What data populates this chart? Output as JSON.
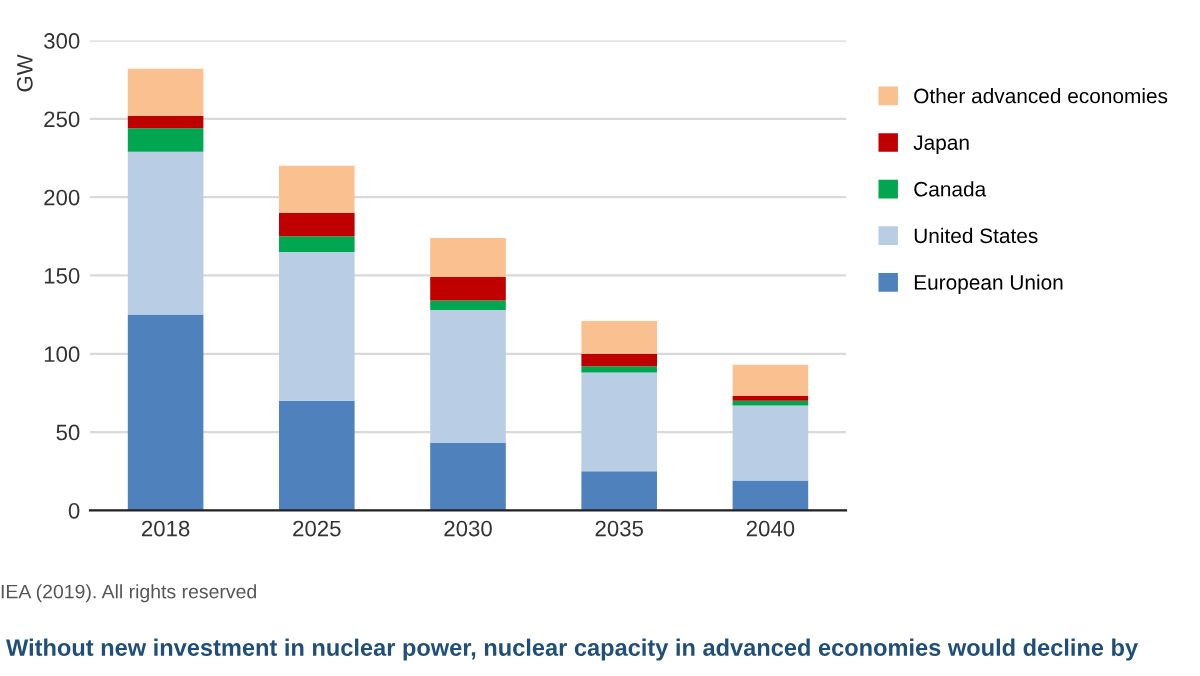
{
  "chart_data": {
    "type": "bar",
    "stacked": true,
    "ylabel": "GW",
    "categories": [
      "2018",
      "2025",
      "2030",
      "2035",
      "2040"
    ],
    "series": [
      {
        "name": "European Union",
        "color": "#4f81bd",
        "values": [
          125,
          70,
          43,
          25,
          19
        ]
      },
      {
        "name": "United States",
        "color": "#b9cde5",
        "values": [
          104,
          95,
          85,
          63,
          48
        ]
      },
      {
        "name": "Canada",
        "color": "#00a650",
        "values": [
          15,
          10,
          6,
          4,
          3
        ]
      },
      {
        "name": "Japan",
        "color": "#c00000",
        "values": [
          8,
          15,
          15,
          8,
          3
        ]
      },
      {
        "name": "Other advanced economies",
        "color": "#fac090",
        "values": [
          30,
          30,
          25,
          21,
          20
        ]
      }
    ],
    "ylim": [
      0,
      300
    ],
    "yticks": [
      0,
      50,
      100,
      150,
      200,
      250,
      300
    ],
    "grid": "y",
    "legend": "right",
    "annotations": [
      "IEA (2019). All rights reserved",
      "Without new investment in nuclear power, nuclear capacity in advanced economies would decline by"
    ]
  }
}
